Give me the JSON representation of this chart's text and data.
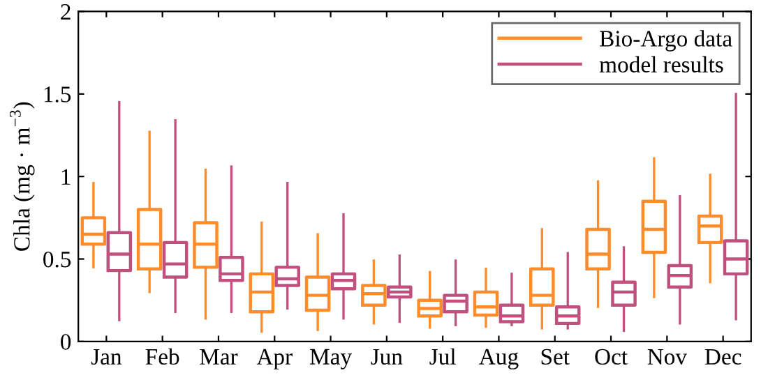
{
  "chart_data": {
    "type": "box",
    "ylabel": "Chla (mg · m$^{−3}$)",
    "categories": [
      "Jan",
      "Feb",
      "Mar",
      "Apr",
      "May",
      "Jun",
      "Jul",
      "Aug",
      "Set",
      "Oct",
      "Nov",
      "Dec"
    ],
    "ylim": [
      0,
      2
    ],
    "yticks": [
      0,
      0.5,
      1,
      1.5,
      2
    ],
    "legend": "top right",
    "grid": false,
    "series": [
      {
        "name": "Bio-Argo data",
        "color": "#ff8c2a",
        "boxes": [
          {
            "low": 0.45,
            "q1": 0.59,
            "median": 0.65,
            "q3": 0.75,
            "high": 0.96
          },
          {
            "low": 0.3,
            "q1": 0.44,
            "median": 0.59,
            "q3": 0.8,
            "high": 1.27
          },
          {
            "low": 0.14,
            "q1": 0.45,
            "median": 0.59,
            "q3": 0.72,
            "high": 1.04
          },
          {
            "low": 0.06,
            "q1": 0.18,
            "median": 0.3,
            "q3": 0.41,
            "high": 0.72
          },
          {
            "low": 0.07,
            "q1": 0.19,
            "median": 0.28,
            "q3": 0.39,
            "high": 0.65
          },
          {
            "low": 0.11,
            "q1": 0.22,
            "median": 0.29,
            "q3": 0.34,
            "high": 0.49
          },
          {
            "low": 0.085,
            "q1": 0.155,
            "median": 0.2,
            "q3": 0.25,
            "high": 0.42
          },
          {
            "low": 0.09,
            "q1": 0.16,
            "median": 0.21,
            "q3": 0.3,
            "high": 0.44
          },
          {
            "low": 0.08,
            "q1": 0.22,
            "median": 0.28,
            "q3": 0.44,
            "high": 0.68
          },
          {
            "low": 0.21,
            "q1": 0.44,
            "median": 0.53,
            "q3": 0.68,
            "high": 0.97
          },
          {
            "low": 0.27,
            "q1": 0.54,
            "median": 0.68,
            "q3": 0.85,
            "high": 1.11
          },
          {
            "low": 0.36,
            "q1": 0.6,
            "median": 0.7,
            "q3": 0.76,
            "high": 1.01
          }
        ]
      },
      {
        "name": "model results",
        "color": "#c2507e",
        "boxes": [
          {
            "low": 0.13,
            "q1": 0.43,
            "median": 0.53,
            "q3": 0.66,
            "high": 1.45
          },
          {
            "low": 0.18,
            "q1": 0.39,
            "median": 0.47,
            "q3": 0.6,
            "high": 1.34
          },
          {
            "low": 0.18,
            "q1": 0.37,
            "median": 0.41,
            "q3": 0.51,
            "high": 1.06
          },
          {
            "low": 0.2,
            "q1": 0.34,
            "median": 0.38,
            "q3": 0.45,
            "high": 0.96
          },
          {
            "low": 0.14,
            "q1": 0.32,
            "median": 0.37,
            "q3": 0.41,
            "high": 0.77
          },
          {
            "low": 0.12,
            "q1": 0.27,
            "median": 0.3,
            "q3": 0.33,
            "high": 0.52
          },
          {
            "low": 0.1,
            "q1": 0.18,
            "median": 0.245,
            "q3": 0.28,
            "high": 0.49
          },
          {
            "low": 0.1,
            "q1": 0.12,
            "median": 0.155,
            "q3": 0.22,
            "high": 0.41
          },
          {
            "low": 0.08,
            "q1": 0.11,
            "median": 0.155,
            "q3": 0.21,
            "high": 0.535
          },
          {
            "low": 0.065,
            "q1": 0.22,
            "median": 0.3,
            "q3": 0.36,
            "high": 0.57
          },
          {
            "low": 0.11,
            "q1": 0.33,
            "median": 0.4,
            "q3": 0.46,
            "high": 0.88
          },
          {
            "low": 0.135,
            "q1": 0.41,
            "median": 0.5,
            "q3": 0.61,
            "high": 1.5
          }
        ]
      }
    ]
  }
}
